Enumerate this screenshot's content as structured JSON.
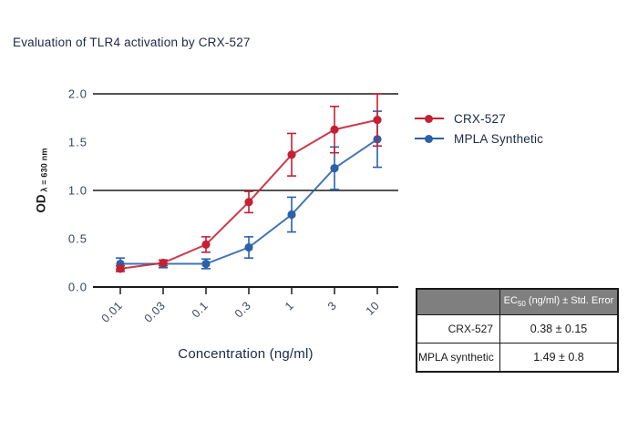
{
  "title": "Evaluation of TLR4 activation by CRX-527",
  "colors": {
    "red": "#C42033",
    "blue": "#2A61A8",
    "axis": "#1A1A1A",
    "tick_text": "#39455C",
    "title_text": "#1C2A44",
    "table_header_bg": "#7F7F7F",
    "table_header_text": "#FFFFFF",
    "table_border": "#1A1A1A",
    "background": "#FFFFFF"
  },
  "chart_data": {
    "type": "line",
    "x_scale": "log",
    "x": [
      0.01,
      0.03,
      0.1,
      0.3,
      1,
      3,
      10
    ],
    "x_tick_labels": [
      "0.01",
      "0.03",
      "0.1",
      "0.3",
      "1",
      "3",
      "10"
    ],
    "series": [
      {
        "name": "MPLA Synthetic",
        "color": "#2A61A8",
        "values": [
          0.24,
          0.24,
          0.24,
          0.41,
          0.75,
          1.23,
          1.53
        ],
        "errors": [
          0.06,
          0.04,
          0.05,
          0.11,
          0.18,
          0.22,
          0.29
        ]
      },
      {
        "name": "CRX-527",
        "color": "#C42033",
        "values": [
          0.19,
          0.25,
          0.44,
          0.88,
          1.37,
          1.63,
          1.73
        ],
        "errors": [
          0.03,
          0.03,
          0.08,
          0.11,
          0.22,
          0.24,
          0.27
        ]
      }
    ],
    "title": "Evaluation of TLR4 activation by CRX-527",
    "xlabel": "Concentration (ng/ml)",
    "ylabel": "OD λ = 630 nm",
    "ylabel_main": "OD",
    "ylabel_sub": " λ = 630 nm",
    "ylim": [
      0,
      2
    ],
    "yticks": [
      0,
      0.5,
      1,
      1.5,
      2
    ],
    "ytick_labels": [
      "0.0",
      "0.5",
      "1.0",
      "1.5",
      "2.0"
    ],
    "gridlines_at": [
      0,
      1,
      2
    ],
    "grid": "horizontal lines at 0.0, 1.0, 2.0 only",
    "legend_position": "right",
    "error_bars": true
  },
  "legend": {
    "items": [
      {
        "label": "CRX-527",
        "color": "#C42033"
      },
      {
        "label": "MPLA Synthetic",
        "color": "#2A61A8"
      }
    ]
  },
  "table": {
    "header": {
      "col1": "",
      "col2_prefix": "EC",
      "col2_sub": "50",
      "col2_rest": " (ng/ml) ± Std. Error"
    },
    "rows": [
      {
        "label": "CRX-527",
        "value": "0.38 ± 0.15"
      },
      {
        "label": "MPLA synthetic",
        "value": "1.49 ± 0.8"
      }
    ]
  }
}
